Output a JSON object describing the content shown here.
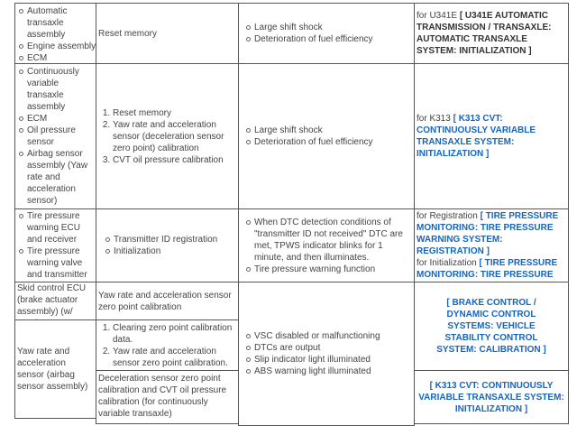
{
  "rows": [
    {
      "components": [
        "Automatic transaxle assembly",
        "Engine assembly",
        "ECM"
      ],
      "procedure": "Reset memory",
      "effects": [
        "Large shift shock",
        "Deterioration of fuel efficiency"
      ],
      "ref_prefix": "for U341E",
      "ref_link": "[ U341E AUTOMATIC TRANSMISSION / TRANSAXLE: AUTOMATIC TRANSAXLE SYSTEM: INITIALIZATION ]"
    },
    {
      "components": [
        "Continuously variable transaxle assembly",
        "ECM",
        "Oil pressure sensor",
        "Airbag sensor assembly (Yaw rate and acceleration sensor)"
      ],
      "procedure_steps": [
        "Reset memory",
        "Yaw rate and acceleration sensor (deceleration sensor zero point) calibration",
        "CVT oil pressure calibration"
      ],
      "effects": [
        "Large shift shock",
        "Deterioration of fuel efficiency"
      ],
      "ref_prefix": "for K313",
      "ref_link": "[ K313 CVT: CONTINUOUSLY VARIABLE TRANSAXLE SYSTEM: INITIALIZATION ]"
    },
    {
      "components": [
        "Tire pressure warning ECU and receiver",
        "Tire pressure warning valve and transmitter"
      ],
      "procedures": [
        "Transmitter ID registration",
        "Initialization"
      ],
      "effects": [
        "When DTC detection conditions of \"transmitter ID not received\" DTC are met, TPWS indicator blinks for 1 minute, and then illuminates.",
        "Tire pressure warning function"
      ],
      "ref1_prefix": "for Registration",
      "ref1_link": "[ TIRE PRESSURE MONITORING: TIRE PRESSURE WARNING SYSTEM: REGISTRATION ]",
      "ref2_prefix": "for Initialization",
      "ref2_link": "[ TIRE PRESSURE MONITORING: TIRE PRESSURE WARNING SYSTEM: INITIALIZATION ]"
    },
    {
      "component_a": "Skid control ECU (brake actuator assembly) (w/ VSC)",
      "component_b": "Yaw rate and acceleration sensor (airbag sensor assembly)",
      "procedure_a": "Yaw rate and acceleration sensor zero point calibration",
      "procedure_b_steps": [
        "Clearing zero point calibration data.",
        "Yaw rate and acceleration sensor zero point calibration."
      ],
      "procedure_c": "Deceleration sensor zero point calibration and CVT oil pressure calibration (for continuously variable transaxle)",
      "effects": [
        "VSC disabled or malfunctioning",
        "DTCs are output",
        "Slip indicator light illuminated",
        "ABS warning light illuminated"
      ],
      "ref_a_link": "[ BRAKE CONTROL / DYNAMIC CONTROL SYSTEMS: VEHICLE STABILITY CONTROL SYSTEM: CALIBRATION ]",
      "ref_b_link": "[ K313 CVT: CONTINUOUSLY VARIABLE TRANSAXLE SYSTEM: INITIALIZATION ]"
    }
  ],
  "colors": {
    "link": "#1565c0",
    "border": "#555555",
    "text": "#444444"
  }
}
